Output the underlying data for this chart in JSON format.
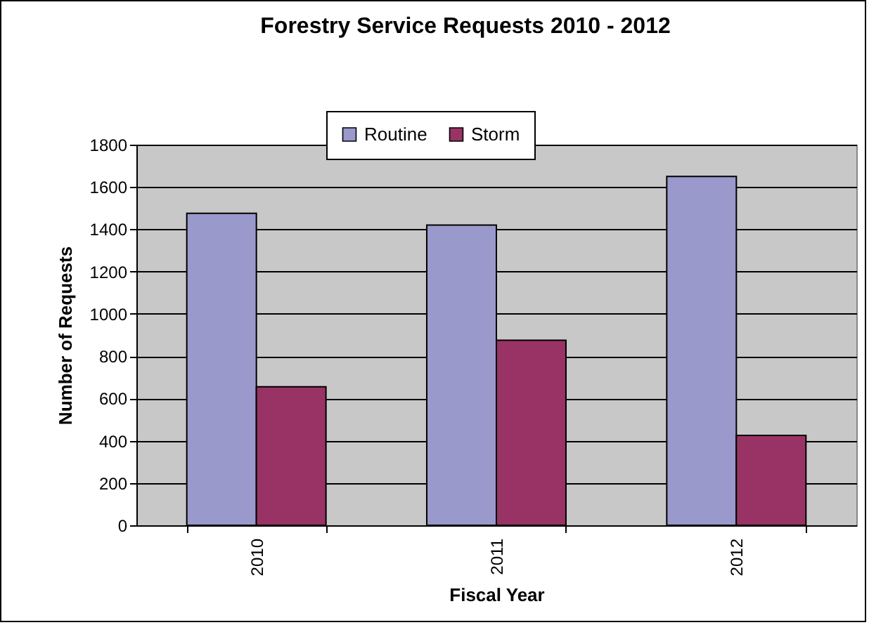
{
  "chart_data": {
    "type": "bar",
    "title": "Forestry Service Requests 2010 - 2012",
    "xlabel": "Fiscal Year",
    "ylabel": "Number of Requests",
    "categories": [
      "2010",
      "2011",
      "2012"
    ],
    "series": [
      {
        "name": "Routine",
        "color": "#9999cc",
        "values": [
          1475,
          1420,
          1650
        ]
      },
      {
        "name": "Storm",
        "color": "#993366",
        "values": [
          655,
          875,
          425
        ]
      }
    ],
    "ylim": [
      0,
      1800
    ],
    "yticks": [
      0,
      200,
      400,
      600,
      800,
      1000,
      1200,
      1400,
      1600,
      1800
    ],
    "grid": "y",
    "legend": "top"
  }
}
